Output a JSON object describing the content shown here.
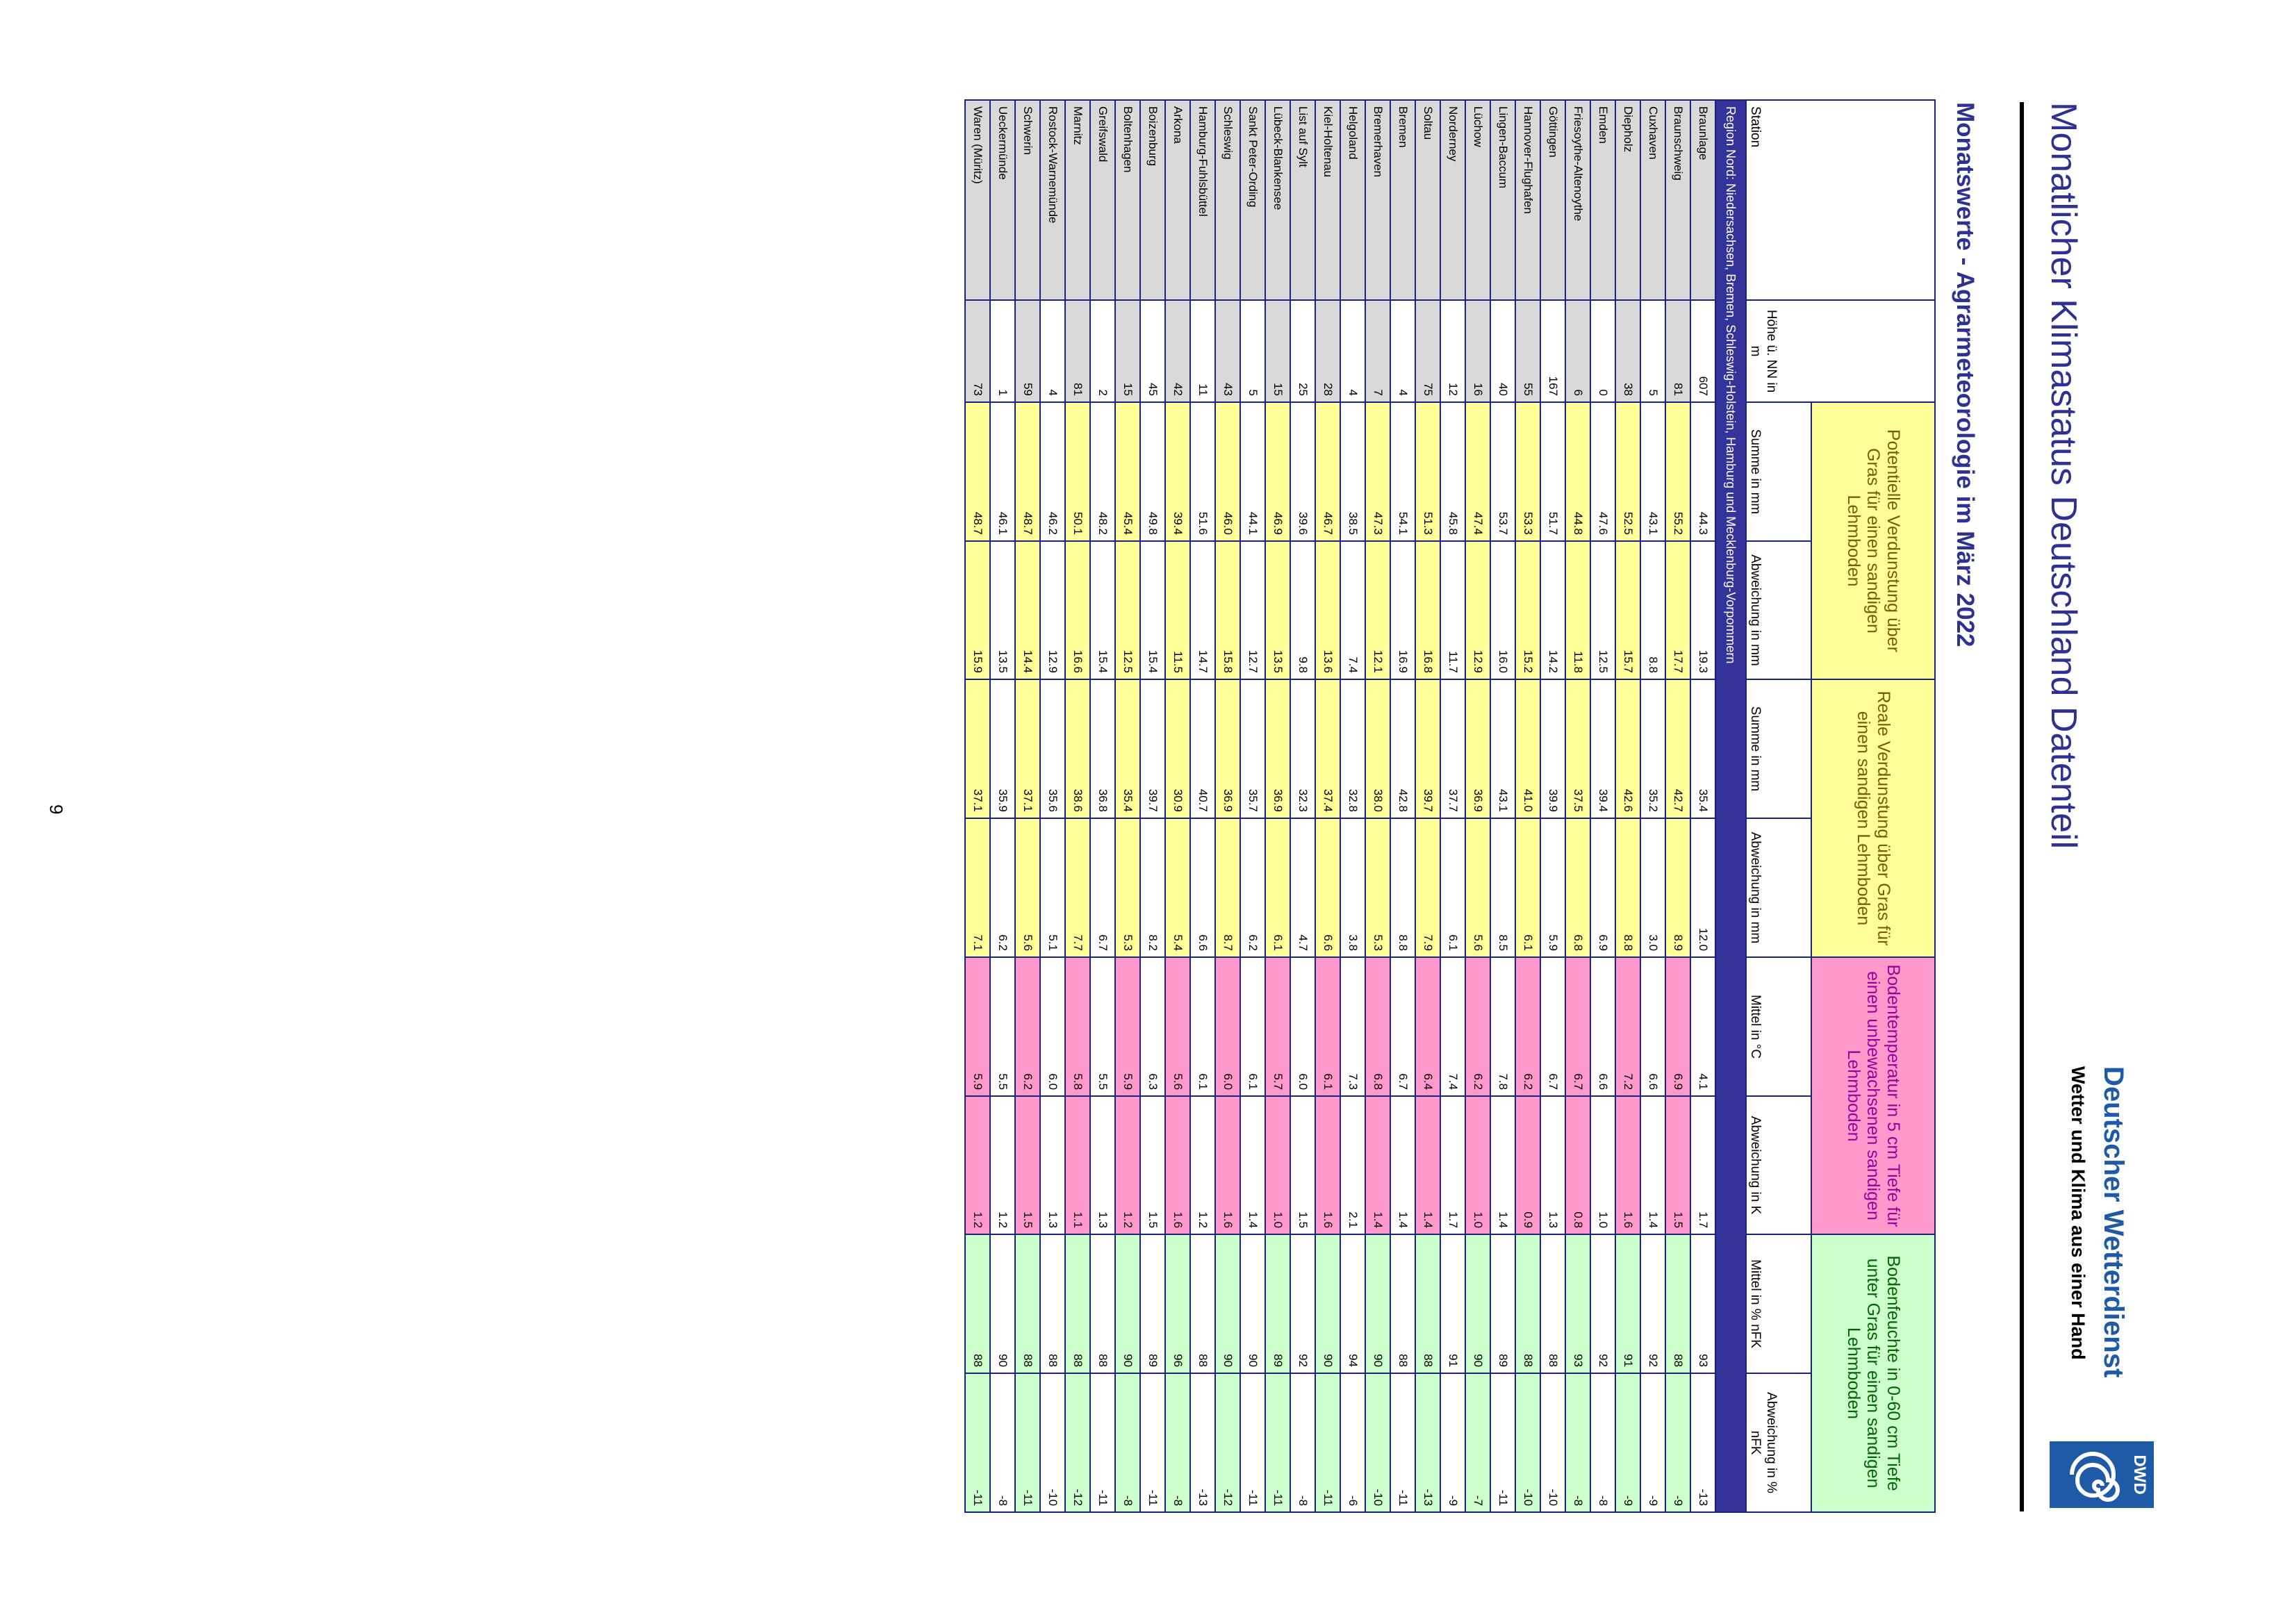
{
  "header": {
    "title": "Monatlicher Klimastatus Deutschland Datenteil",
    "logo_abbr": "DWD",
    "logo_name": "Deutscher Wetterdienst",
    "logo_tagline": "Wetter und Klima aus einer Hand"
  },
  "subtitle": "Monatswerte - Agrarmeteorologie im März 2022",
  "table": {
    "station_header": "Station",
    "height_header": "Höhe ü. NN in m",
    "groups": [
      {
        "title": "Potentielle Verdunstung über Gras für einen sandigen Lehmboden",
        "columns": [
          "Summe in mm",
          "Abweichung in mm"
        ]
      },
      {
        "title": "Reale Verdunstung über Gras für einen sandigen Lehmboden",
        "columns": [
          "Summe in mm",
          "Abweichung in mm"
        ]
      },
      {
        "title": "Bodentemperatur in 5 cm Tiefe für einen unbewachsenen sandigen Lehmboden",
        "columns": [
          "Mittel in °C",
          "Abweichung in K"
        ]
      },
      {
        "title": "Bodenfeuchte in 0-60 cm Tiefe unter Gras für einen sandigen Lehmboden",
        "columns": [
          "Mittel in % nFK",
          "Abweichung in % nFK"
        ]
      }
    ],
    "region": "Region Nord: Niedersachsen, Bremen, Schleswig-Holstein, Hamburg und Mecklenburg-Vorpommern",
    "rows": [
      [
        "Braunlage",
        "607",
        "44.3",
        "19.3",
        "35.4",
        "12.0",
        "4.1",
        "1.7",
        "93",
        "-13"
      ],
      [
        "Braunschweig",
        "81",
        "55.2",
        "17.7",
        "42.7",
        "8.9",
        "6.9",
        "1.5",
        "88",
        "-9"
      ],
      [
        "Cuxhaven",
        "5",
        "43.1",
        "8.8",
        "35.2",
        "3.0",
        "6.6",
        "1.4",
        "92",
        "-9"
      ],
      [
        "Diepholz",
        "38",
        "52.5",
        "15.7",
        "42.6",
        "8.8",
        "7.2",
        "1.6",
        "91",
        "-9"
      ],
      [
        "Emden",
        "0",
        "47.6",
        "12.5",
        "39.4",
        "6.9",
        "6.6",
        "1.0",
        "92",
        "-8"
      ],
      [
        "Friesoythe-Altenoythe",
        "6",
        "44.8",
        "11.8",
        "37.5",
        "6.8",
        "6.7",
        "0.8",
        "93",
        "-8"
      ],
      [
        "Göttingen",
        "167",
        "51.7",
        "14.2",
        "39.9",
        "5.9",
        "6.7",
        "1.3",
        "88",
        "-10"
      ],
      [
        "Hannover-Flughafen",
        "55",
        "53.3",
        "15.2",
        "41.0",
        "6.1",
        "6.2",
        "0.9",
        "88",
        "-10"
      ],
      [
        "Lingen-Baccum",
        "40",
        "53.7",
        "16.0",
        "43.1",
        "8.5",
        "7.8",
        "1.4",
        "89",
        "-11"
      ],
      [
        "Lüchow",
        "16",
        "47.4",
        "12.9",
        "36.9",
        "5.6",
        "6.2",
        "1.0",
        "90",
        "-7"
      ],
      [
        "Norderney",
        "12",
        "45.8",
        "11.7",
        "37.7",
        "6.1",
        "7.4",
        "1.7",
        "91",
        "-9"
      ],
      [
        "Soltau",
        "75",
        "51.3",
        "16.8",
        "39.7",
        "7.9",
        "6.4",
        "1.4",
        "88",
        "-13"
      ],
      [
        "Bremen",
        "4",
        "54.1",
        "16.9",
        "42.8",
        "8.8",
        "6.7",
        "1.4",
        "88",
        "-11"
      ],
      [
        "Bremerhaven",
        "7",
        "47.3",
        "12.1",
        "38.0",
        "5.3",
        "6.8",
        "1.4",
        "90",
        "-10"
      ],
      [
        "Helgoland",
        "4",
        "38.5",
        "7.4",
        "32.8",
        "3.8",
        "7.3",
        "2.1",
        "94",
        "-6"
      ],
      [
        "Kiel-Holtenau",
        "28",
        "46.7",
        "13.6",
        "37.4",
        "6.6",
        "6.1",
        "1.6",
        "90",
        "-11"
      ],
      [
        "List auf Sylt",
        "25",
        "39.6",
        "9.8",
        "32.3",
        "4.7",
        "6.0",
        "1.5",
        "92",
        "-8"
      ],
      [
        "Lübeck-Blankensee",
        "15",
        "46.9",
        "13.5",
        "36.9",
        "6.1",
        "5.7",
        "1.0",
        "89",
        "-11"
      ],
      [
        "Sankt Peter-Ording",
        "5",
        "44.1",
        "12.7",
        "35.7",
        "6.2",
        "6.1",
        "1.4",
        "90",
        "-11"
      ],
      [
        "Schleswig",
        "43",
        "46.0",
        "15.8",
        "36.9",
        "8.7",
        "6.0",
        "1.6",
        "90",
        "-12"
      ],
      [
        "Hamburg-Fuhlsbüttel",
        "11",
        "51.6",
        "14.7",
        "40.7",
        "6.6",
        "6.1",
        "1.2",
        "88",
        "-13"
      ],
      [
        "Arkona",
        "42",
        "39.4",
        "11.5",
        "30.9",
        "5.4",
        "5.6",
        "1.6",
        "96",
        "-8"
      ],
      [
        "Boizenburg",
        "45",
        "49.8",
        "15.4",
        "39.7",
        "8.2",
        "6.3",
        "1.5",
        "89",
        "-11"
      ],
      [
        "Boltenhagen",
        "15",
        "45.4",
        "12.5",
        "35.4",
        "5.3",
        "5.9",
        "1.2",
        "90",
        "-8"
      ],
      [
        "Greifswald",
        "2",
        "48.2",
        "15.4",
        "36.8",
        "6.7",
        "5.5",
        "1.3",
        "88",
        "-11"
      ],
      [
        "Marnitz",
        "81",
        "50.1",
        "16.6",
        "38.6",
        "7.7",
        "5.8",
        "1.1",
        "88",
        "-12"
      ],
      [
        "Rostock-Warnemünde",
        "4",
        "46.2",
        "12.9",
        "35.6",
        "5.1",
        "6.0",
        "1.3",
        "88",
        "-10"
      ],
      [
        "Schwerin",
        "59",
        "48.7",
        "14.4",
        "37.1",
        "5.6",
        "6.2",
        "1.5",
        "88",
        "-11"
      ],
      [
        "Ueckermünde",
        "1",
        "46.1",
        "13.5",
        "35.9",
        "6.2",
        "5.5",
        "1.2",
        "90",
        "-8"
      ],
      [
        "Waren (Müritz)",
        "73",
        "48.7",
        "15.9",
        "37.1",
        "7.1",
        "5.9",
        "1.2",
        "88",
        "-11"
      ]
    ]
  },
  "page_number": "9"
}
